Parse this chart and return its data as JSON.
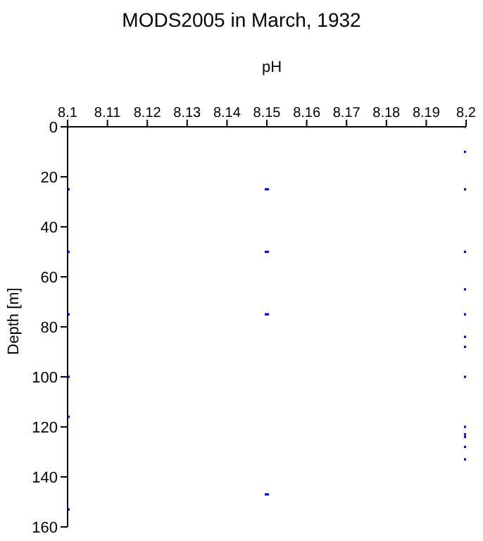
{
  "chart_data": {
    "type": "scatter",
    "title": "MODS2005 in March, 1932",
    "xlabel": "pH",
    "ylabel": "Depth [m]",
    "x": [
      8.1,
      8.1,
      8.1,
      8.1,
      8.1,
      8.1,
      8.15,
      8.15,
      8.15,
      8.15,
      8.2,
      8.2,
      8.2,
      8.2,
      8.2,
      8.2,
      8.2,
      8.2,
      8.2,
      8.2,
      8.2,
      8.2,
      8.2,
      8.2
    ],
    "series": [
      {
        "color": "#0000ff",
        "values": [
          25,
          50,
          75,
          100,
          116,
          153,
          25,
          50,
          75,
          147,
          0,
          10,
          25,
          50,
          65,
          75,
          84,
          88,
          100,
          120,
          123,
          124,
          128,
          133
        ]
      }
    ],
    "xlim": [
      8.1,
      8.2
    ],
    "xticks": [
      8.1,
      8.11,
      8.12,
      8.13,
      8.14,
      8.15,
      8.16,
      8.17,
      8.18,
      8.19,
      8.2
    ],
    "ylim": [
      160,
      0
    ],
    "yticks": [
      0,
      20,
      40,
      60,
      80,
      100,
      120,
      140,
      160
    ],
    "grid": false,
    "legend": false,
    "marker": "square"
  }
}
